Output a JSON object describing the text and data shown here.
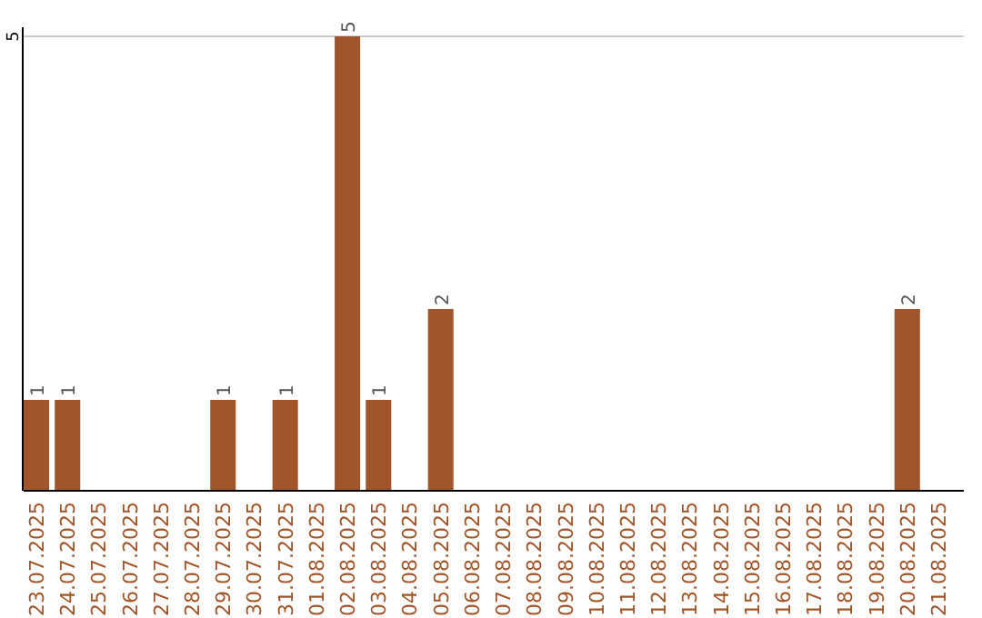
{
  "chart_data": {
    "type": "bar",
    "categories": [
      "23.07.2025",
      "24.07.2025",
      "25.07.2025",
      "26.07.2025",
      "27.07.2025",
      "28.07.2025",
      "29.07.2025",
      "30.07.2025",
      "31.07.2025",
      "01.08.2025",
      "02.08.2025",
      "03.08.2025",
      "04.08.2025",
      "05.08.2025",
      "06.08.2025",
      "07.08.2025",
      "08.08.2025",
      "09.08.2025",
      "10.08.2025",
      "11.08.2025",
      "12.08.2025",
      "13.08.2025",
      "14.08.2025",
      "15.08.2025",
      "16.08.2025",
      "17.08.2025",
      "18.08.2025",
      "19.08.2025",
      "20.08.2025",
      "21.08.2025"
    ],
    "values": [
      1,
      1,
      0,
      0,
      0,
      0,
      1,
      0,
      1,
      0,
      5,
      1,
      0,
      2,
      0,
      0,
      0,
      0,
      0,
      0,
      0,
      0,
      0,
      0,
      0,
      0,
      0,
      0,
      2,
      0
    ],
    "value_labels": [
      "1",
      "1",
      null,
      null,
      null,
      null,
      "1",
      null,
      "1",
      null,
      "5",
      "1",
      null,
      "2",
      null,
      null,
      null,
      null,
      null,
      null,
      null,
      null,
      null,
      null,
      null,
      null,
      null,
      null,
      "2",
      null
    ],
    "color": "#a0562a",
    "ylim": [
      0,
      5.1
    ],
    "yticks": [
      5
    ],
    "grid": "y"
  }
}
